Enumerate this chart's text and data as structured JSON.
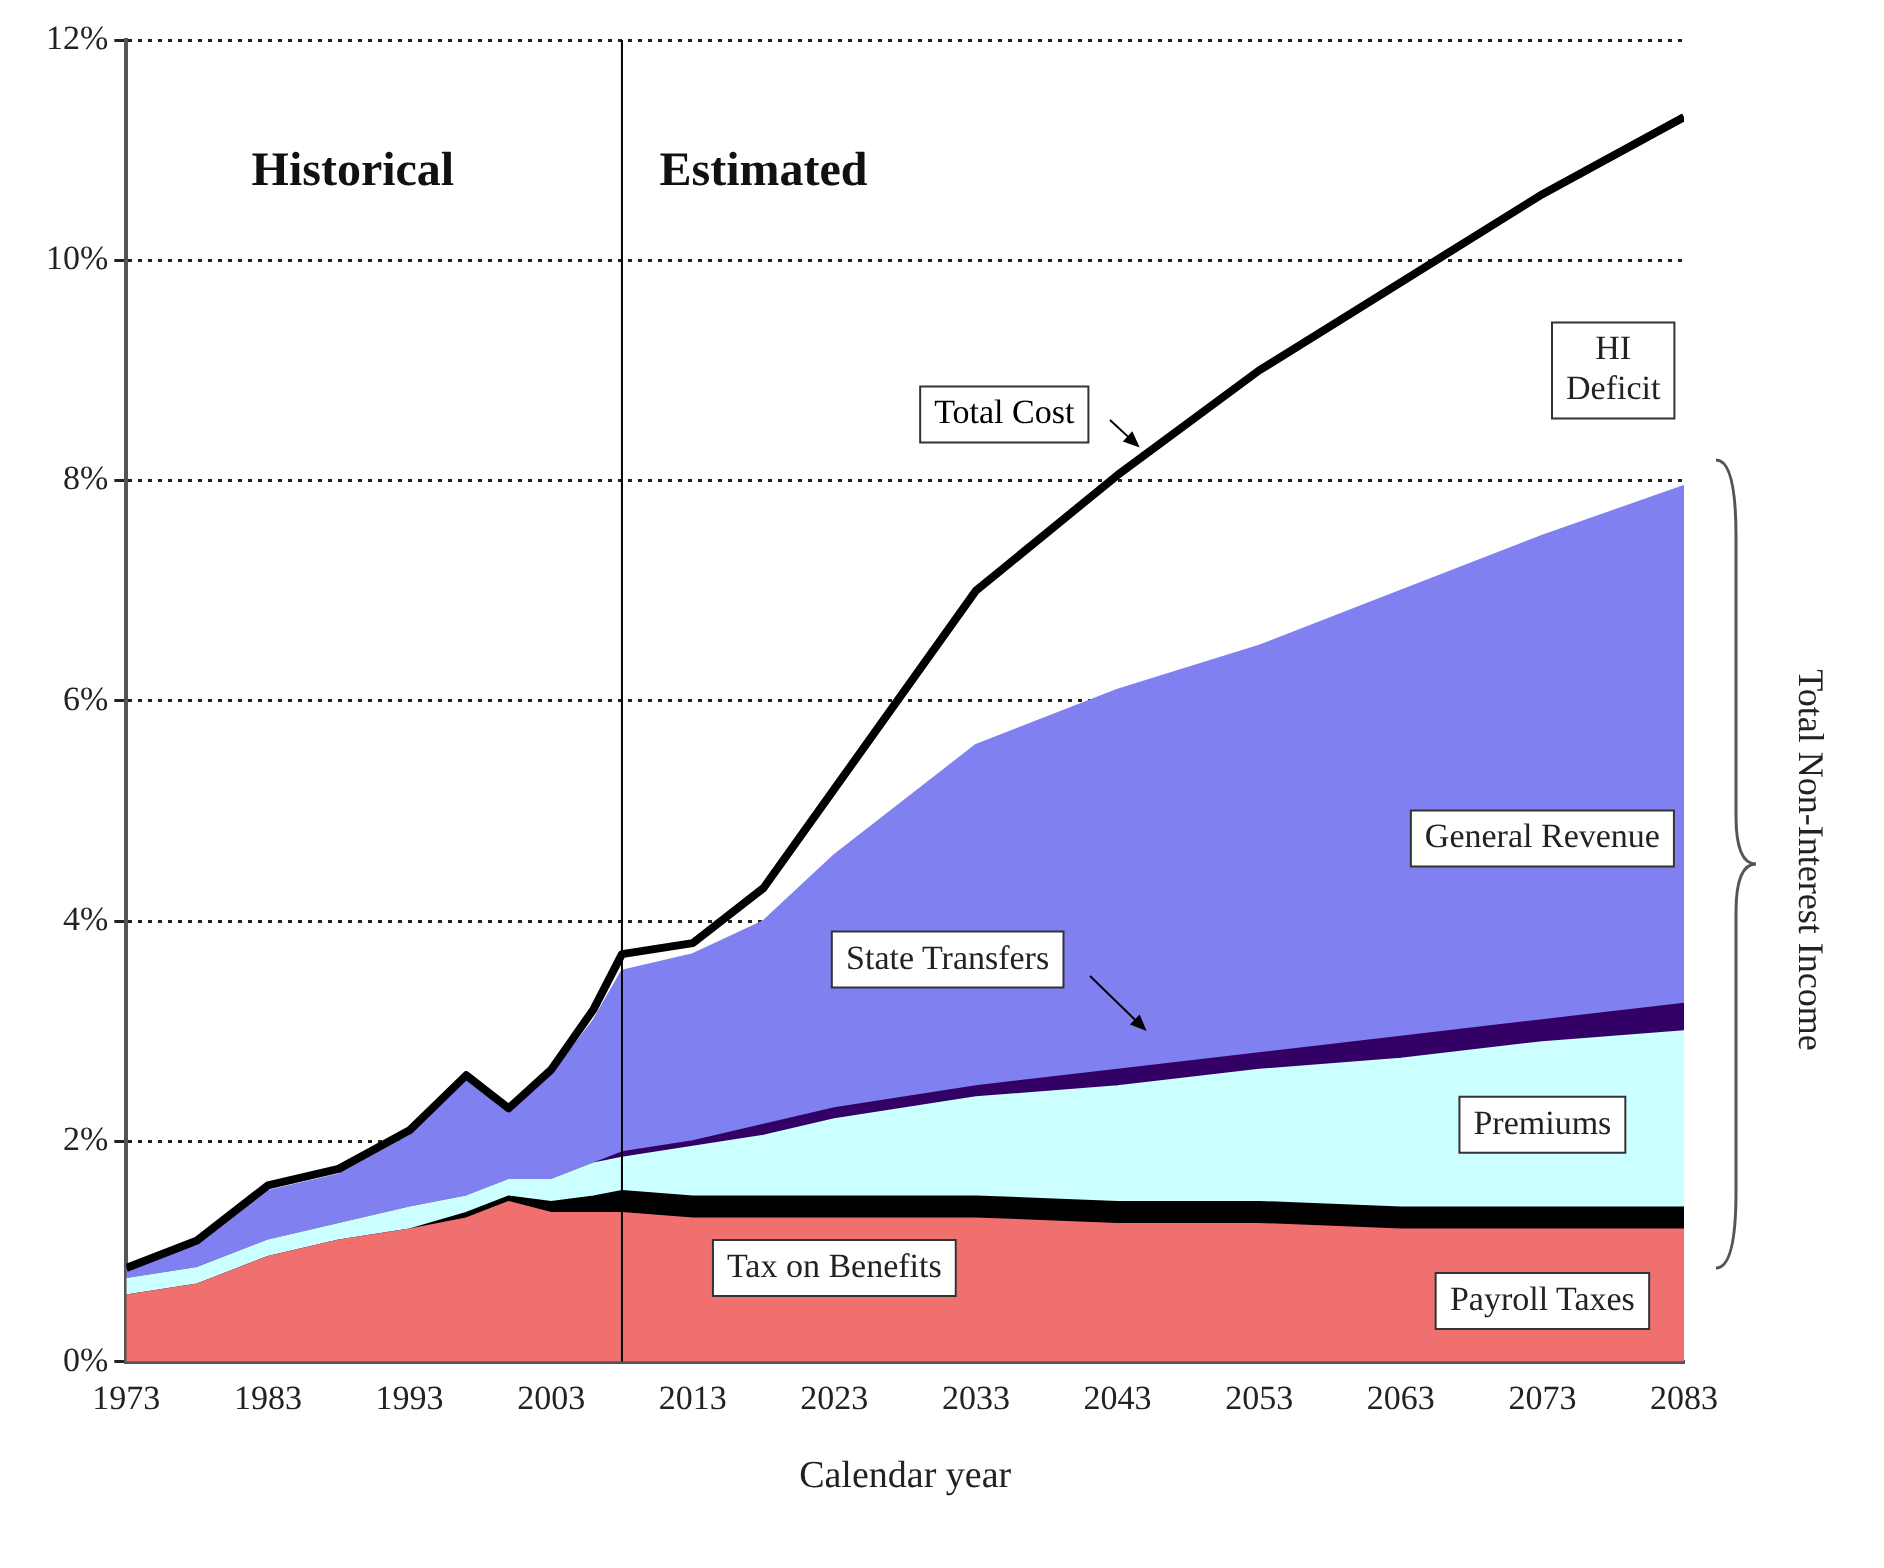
{
  "chart_data": {
    "type": "area",
    "stacked": true,
    "xlabel": "Calendar year",
    "x": [
      1973,
      1978,
      1983,
      1988,
      1993,
      1997,
      2000,
      2003,
      2006,
      2008,
      2013,
      2018,
      2023,
      2033,
      2043,
      2053,
      2063,
      2073,
      2083
    ],
    "series": [
      {
        "name": "Payroll Taxes",
        "color": "#f07070",
        "values": [
          0.6,
          0.7,
          0.95,
          1.1,
          1.2,
          1.3,
          1.45,
          1.35,
          1.35,
          1.35,
          1.3,
          1.3,
          1.3,
          1.3,
          1.25,
          1.25,
          1.2,
          1.2,
          1.2
        ]
      },
      {
        "name": "Tax on Benefits",
        "color": "#000000",
        "values": [
          0,
          0,
          0,
          0,
          0,
          0.05,
          0.05,
          0.1,
          0.15,
          0.2,
          0.2,
          0.2,
          0.2,
          0.2,
          0.2,
          0.2,
          0.2,
          0.2,
          0.2
        ]
      },
      {
        "name": "Premiums",
        "color": "#ccffff",
        "values": [
          0.15,
          0.15,
          0.15,
          0.15,
          0.2,
          0.15,
          0.15,
          0.2,
          0.3,
          0.3,
          0.45,
          0.55,
          0.7,
          0.9,
          1.05,
          1.2,
          1.35,
          1.5,
          1.6
        ]
      },
      {
        "name": "State Transfers",
        "color": "#330066",
        "values": [
          0,
          0,
          0,
          0,
          0,
          0,
          0,
          0,
          0,
          0.05,
          0.05,
          0.1,
          0.1,
          0.1,
          0.15,
          0.15,
          0.2,
          0.2,
          0.25
        ]
      },
      {
        "name": "General Revenue",
        "color": "#8080f0",
        "values": [
          0.1,
          0.2,
          0.45,
          0.45,
          0.65,
          1.05,
          0.6,
          0.95,
          1.3,
          1.65,
          1.7,
          1.85,
          2.3,
          3.1,
          3.45,
          3.7,
          4.05,
          4.4,
          4.7
        ]
      },
      {
        "name": "Total Cost",
        "type": "line",
        "color": "#000000",
        "values": [
          0.85,
          1.1,
          1.6,
          1.75,
          2.1,
          2.6,
          2.3,
          2.65,
          3.2,
          3.7,
          3.8,
          4.3,
          5.2,
          7.0,
          8.05,
          9.0,
          9.8,
          10.6,
          11.3
        ]
      }
    ],
    "xlim": [
      1973,
      2083
    ],
    "xticks": [
      1973,
      1983,
      1993,
      2003,
      2013,
      2023,
      2033,
      2043,
      2053,
      2063,
      2073,
      2083
    ],
    "ylim": [
      0,
      12
    ],
    "yticks": [
      {
        "value": 0,
        "label": "0%"
      },
      {
        "value": 2,
        "label": "2%"
      },
      {
        "value": 4,
        "label": "4%"
      },
      {
        "value": 6,
        "label": "6%"
      },
      {
        "value": 8,
        "label": "8%"
      },
      {
        "value": 10,
        "label": "10%"
      },
      {
        "value": 12,
        "label": "12%"
      }
    ],
    "grid": "y",
    "marker": "none",
    "ref_lines": [
      {
        "axis": "x",
        "value": 2008,
        "color": "#000000"
      }
    ],
    "annotations": [
      "Historical",
      "Estimated",
      "HI Deficit",
      "Total Non-Interest Income"
    ]
  }
}
